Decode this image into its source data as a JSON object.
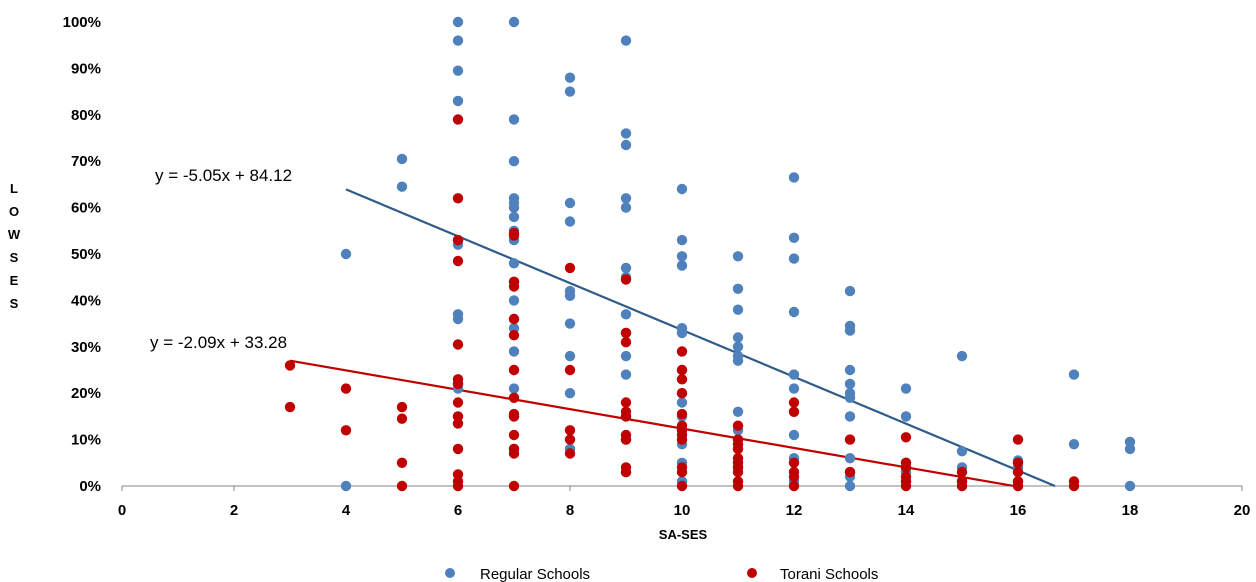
{
  "chart_data": {
    "type": "scatter",
    "xlabel": "SA-SES",
    "ylabel": "LowSES",
    "xlim": [
      0,
      20
    ],
    "ylim": [
      0,
      100
    ],
    "x_ticks": [
      "0",
      "2",
      "4",
      "6",
      "8",
      "10",
      "12",
      "14",
      "16",
      "18",
      "20"
    ],
    "y_ticks": [
      "0%",
      "10%",
      "20%",
      "30%",
      "40%",
      "50%",
      "60%",
      "70%",
      "80%",
      "90%",
      "100%"
    ],
    "grid": false,
    "legend_position": "bottom",
    "series": [
      {
        "name": "Regular Schools",
        "color": "#4f81bd",
        "points": [
          [
            4,
            50
          ],
          [
            4,
            0
          ],
          [
            5,
            70.5
          ],
          [
            5,
            64.5
          ],
          [
            6,
            100
          ],
          [
            6,
            96
          ],
          [
            6,
            89.5
          ],
          [
            6,
            83
          ],
          [
            6,
            53
          ],
          [
            6,
            52
          ],
          [
            6,
            37
          ],
          [
            6,
            36
          ],
          [
            6,
            22
          ],
          [
            6,
            21
          ],
          [
            7,
            100
          ],
          [
            7,
            79
          ],
          [
            7,
            70
          ],
          [
            7,
            62
          ],
          [
            7,
            61
          ],
          [
            7,
            60
          ],
          [
            7,
            58
          ],
          [
            7,
            55
          ],
          [
            7,
            53
          ],
          [
            7,
            48
          ],
          [
            7,
            44
          ],
          [
            7,
            40
          ],
          [
            7,
            36
          ],
          [
            7,
            34
          ],
          [
            7,
            29
          ],
          [
            7,
            25
          ],
          [
            7,
            21
          ],
          [
            7,
            15
          ],
          [
            7,
            8
          ],
          [
            8,
            88
          ],
          [
            8,
            85
          ],
          [
            8,
            61
          ],
          [
            8,
            57
          ],
          [
            8,
            42
          ],
          [
            8,
            41
          ],
          [
            8,
            35
          ],
          [
            8,
            28
          ],
          [
            8,
            20
          ],
          [
            8,
            8
          ],
          [
            9,
            96
          ],
          [
            9,
            76
          ],
          [
            9,
            73.5
          ],
          [
            9,
            62
          ],
          [
            9,
            60
          ],
          [
            9,
            47
          ],
          [
            9,
            45
          ],
          [
            9,
            37
          ],
          [
            9,
            33
          ],
          [
            9,
            28
          ],
          [
            9,
            24
          ],
          [
            9,
            15
          ],
          [
            9,
            10
          ],
          [
            9,
            3
          ],
          [
            10,
            64
          ],
          [
            10,
            53
          ],
          [
            10,
            49.5
          ],
          [
            10,
            47.5
          ],
          [
            10,
            34
          ],
          [
            10,
            33
          ],
          [
            10,
            25
          ],
          [
            10,
            20
          ],
          [
            10,
            18
          ],
          [
            10,
            15
          ],
          [
            10,
            12
          ],
          [
            10,
            9
          ],
          [
            10,
            5
          ],
          [
            10,
            1
          ],
          [
            11,
            49.5
          ],
          [
            11,
            42.5
          ],
          [
            11,
            38
          ],
          [
            11,
            32
          ],
          [
            11,
            30
          ],
          [
            11,
            28
          ],
          [
            11,
            27
          ],
          [
            11,
            16
          ],
          [
            11,
            12
          ],
          [
            11,
            9
          ],
          [
            11,
            4
          ],
          [
            12,
            66.5
          ],
          [
            12,
            53.5
          ],
          [
            12,
            49
          ],
          [
            12,
            37.5
          ],
          [
            12,
            24
          ],
          [
            12,
            21
          ],
          [
            12,
            16
          ],
          [
            12,
            11
          ],
          [
            12,
            6
          ],
          [
            12,
            1
          ],
          [
            13,
            42
          ],
          [
            13,
            34.5
          ],
          [
            13,
            33.5
          ],
          [
            13,
            25
          ],
          [
            13,
            22
          ],
          [
            13,
            20
          ],
          [
            13,
            19
          ],
          [
            13,
            15
          ],
          [
            13,
            6
          ],
          [
            13,
            3
          ],
          [
            13,
            2
          ],
          [
            13,
            0
          ],
          [
            14,
            21
          ],
          [
            14,
            15
          ],
          [
            14,
            5
          ],
          [
            14,
            3
          ],
          [
            14,
            1
          ],
          [
            15,
            28
          ],
          [
            15,
            7.5
          ],
          [
            15,
            4
          ],
          [
            15,
            1
          ],
          [
            15,
            0
          ],
          [
            16,
            5.5
          ],
          [
            16,
            4
          ],
          [
            16,
            1
          ],
          [
            16,
            0
          ],
          [
            17,
            24
          ],
          [
            17,
            9
          ],
          [
            18,
            9.5
          ],
          [
            18,
            8
          ],
          [
            18,
            0
          ]
        ]
      },
      {
        "name": "Torani Schools",
        "color": "#c00000",
        "points": [
          [
            3,
            26
          ],
          [
            3,
            17
          ],
          [
            4,
            21
          ],
          [
            4,
            12
          ],
          [
            5,
            17
          ],
          [
            5,
            14.5
          ],
          [
            5,
            5
          ],
          [
            5,
            0
          ],
          [
            6,
            79
          ],
          [
            6,
            62
          ],
          [
            6,
            53
          ],
          [
            6,
            48.5
          ],
          [
            6,
            30.5
          ],
          [
            6,
            23
          ],
          [
            6,
            22
          ],
          [
            6,
            18
          ],
          [
            6,
            15
          ],
          [
            6,
            13.5
          ],
          [
            6,
            8
          ],
          [
            6,
            2.5
          ],
          [
            6,
            1
          ],
          [
            6,
            0
          ],
          [
            7,
            54.5
          ],
          [
            7,
            54
          ],
          [
            7,
            44
          ],
          [
            7,
            43
          ],
          [
            7,
            36
          ],
          [
            7,
            32.5
          ],
          [
            7,
            25
          ],
          [
            7,
            19
          ],
          [
            7,
            15.5
          ],
          [
            7,
            15
          ],
          [
            7,
            11
          ],
          [
            7,
            8
          ],
          [
            7,
            7
          ],
          [
            7,
            0
          ],
          [
            8,
            47
          ],
          [
            8,
            25
          ],
          [
            8,
            12
          ],
          [
            8,
            10
          ],
          [
            8,
            7
          ],
          [
            9,
            44.5
          ],
          [
            9,
            33
          ],
          [
            9,
            31
          ],
          [
            9,
            18
          ],
          [
            9,
            16
          ],
          [
            9,
            15
          ],
          [
            9,
            11
          ],
          [
            9,
            10
          ],
          [
            9,
            4
          ],
          [
            9,
            3
          ],
          [
            10,
            29
          ],
          [
            10,
            25
          ],
          [
            10,
            23
          ],
          [
            10,
            20
          ],
          [
            10,
            15.5
          ],
          [
            10,
            13
          ],
          [
            10,
            12
          ],
          [
            10,
            11
          ],
          [
            10,
            10
          ],
          [
            10,
            4
          ],
          [
            10,
            3
          ],
          [
            10,
            0
          ],
          [
            11,
            13
          ],
          [
            11,
            10
          ],
          [
            11,
            9
          ],
          [
            11,
            8
          ],
          [
            11,
            6
          ],
          [
            11,
            5
          ],
          [
            11,
            4
          ],
          [
            11,
            3
          ],
          [
            11,
            1
          ],
          [
            11,
            0
          ],
          [
            12,
            18
          ],
          [
            12,
            16
          ],
          [
            12,
            5
          ],
          [
            12,
            3
          ],
          [
            12,
            2
          ],
          [
            12,
            0
          ],
          [
            13,
            10
          ],
          [
            13,
            3
          ],
          [
            14,
            10.5
          ],
          [
            14,
            5
          ],
          [
            14,
            4
          ],
          [
            14,
            2
          ],
          [
            14,
            1
          ],
          [
            14,
            0
          ],
          [
            15,
            3
          ],
          [
            15,
            1
          ],
          [
            15,
            0
          ],
          [
            16,
            10
          ],
          [
            16,
            5
          ],
          [
            16,
            3
          ],
          [
            16,
            1
          ],
          [
            16,
            0
          ],
          [
            17,
            1
          ],
          [
            17,
            0
          ]
        ]
      }
    ],
    "trendlines": [
      {
        "series": "Regular Schools",
        "slope": -5.05,
        "intercept": 84.12,
        "x_range": [
          4,
          16.66
        ],
        "color": "#2e5b8a",
        "equation": "y = -5.05x + 84.12"
      },
      {
        "series": "Torani Schools",
        "slope": -2.09,
        "intercept": 33.28,
        "x_range": [
          3,
          15.92
        ],
        "color": "#c00000",
        "equation": "y = -2.09x + 33.28"
      }
    ]
  }
}
